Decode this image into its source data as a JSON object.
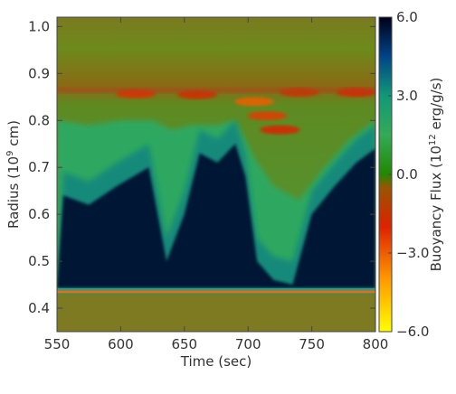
{
  "chart_data": {
    "type": "heatmap",
    "title": "",
    "xlabel": "Time (sec)",
    "ylabel": "Radius (10",
    "ylabel_sup": "9",
    "ylabel_tail": " cm)",
    "xlim": [
      550,
      800
    ],
    "ylim": [
      0.35,
      1.02
    ],
    "xticks": [
      550,
      600,
      650,
      700,
      750,
      800
    ],
    "xtick_labels": [
      "550",
      "600",
      "650",
      "700",
      "750",
      "800"
    ],
    "yticks": [
      0.4,
      0.5,
      0.6,
      0.7,
      0.8,
      0.9,
      1.0
    ],
    "ytick_labels": [
      "0.4",
      "0.5",
      "0.6",
      "0.7",
      "0.8",
      "0.9",
      "1.0"
    ],
    "colorbar": {
      "label_pre": "Buoyancy Flux (10",
      "label_sup": "12",
      "label_post": " erg/g/s)",
      "range": [
        -6.0,
        6.0
      ],
      "ticks": [
        6.0,
        3.0,
        0.0,
        -3.0,
        -6.0
      ],
      "tick_labels": [
        "6.0",
        "3.0",
        "0.0",
        "−3.0",
        "−6.0"
      ],
      "colormap": [
        {
          "value": -6.0,
          "color": "#ffff00"
        },
        {
          "value": -4.0,
          "color": "#ff9900"
        },
        {
          "value": -2.0,
          "color": "#dd2200"
        },
        {
          "value": -0.5,
          "color": "#995500"
        },
        {
          "value": 0.0,
          "color": "#228800"
        },
        {
          "value": 1.5,
          "color": "#33aa55"
        },
        {
          "value": 3.0,
          "color": "#119977"
        },
        {
          "value": 4.5,
          "color": "#004488"
        },
        {
          "value": 6.0,
          "color": "#000018"
        }
      ]
    },
    "zones": {
      "convective_base_radius": 0.435,
      "upper_boundary_radius": 0.86
    },
    "dark_plume_tops": [
      {
        "time": 555,
        "radius": 0.64
      },
      {
        "time": 575,
        "radius": 0.62
      },
      {
        "time": 597,
        "radius": 0.66
      },
      {
        "time": 622,
        "radius": 0.7
      },
      {
        "time": 636,
        "radius": 0.5
      },
      {
        "time": 650,
        "radius": 0.6
      },
      {
        "time": 662,
        "radius": 0.73
      },
      {
        "time": 676,
        "radius": 0.71
      },
      {
        "time": 690,
        "radius": 0.75
      },
      {
        "time": 698,
        "radius": 0.68
      },
      {
        "time": 707,
        "radius": 0.5
      },
      {
        "time": 720,
        "radius": 0.46
      },
      {
        "time": 735,
        "radius": 0.45
      },
      {
        "time": 750,
        "radius": 0.6
      },
      {
        "time": 768,
        "radius": 0.66
      },
      {
        "time": 785,
        "radius": 0.71
      },
      {
        "time": 800,
        "radius": 0.74
      }
    ],
    "green_envelope_tops": [
      {
        "time": 550,
        "radius": 0.8
      },
      {
        "time": 575,
        "radius": 0.79
      },
      {
        "time": 600,
        "radius": 0.8
      },
      {
        "time": 625,
        "radius": 0.8
      },
      {
        "time": 640,
        "radius": 0.78
      },
      {
        "time": 655,
        "radius": 0.79
      },
      {
        "time": 675,
        "radius": 0.79
      },
      {
        "time": 690,
        "radius": 0.8
      },
      {
        "time": 705,
        "radius": 0.72
      },
      {
        "time": 720,
        "radius": 0.66
      },
      {
        "time": 740,
        "radius": 0.63
      },
      {
        "time": 760,
        "radius": 0.7
      },
      {
        "time": 780,
        "radius": 0.76
      },
      {
        "time": 800,
        "radius": 0.8
      }
    ],
    "negative_flux_patches": [
      {
        "time": 612,
        "radius": 0.857,
        "value": -2.2
      },
      {
        "time": 660,
        "radius": 0.855,
        "value": -1.8
      },
      {
        "time": 705,
        "radius": 0.84,
        "value": -3.0
      },
      {
        "time": 715,
        "radius": 0.81,
        "value": -2.4
      },
      {
        "time": 725,
        "radius": 0.78,
        "value": -2.0
      },
      {
        "time": 740,
        "radius": 0.86,
        "value": -1.6
      },
      {
        "time": 785,
        "radius": 0.86,
        "value": -2.0
      }
    ]
  }
}
